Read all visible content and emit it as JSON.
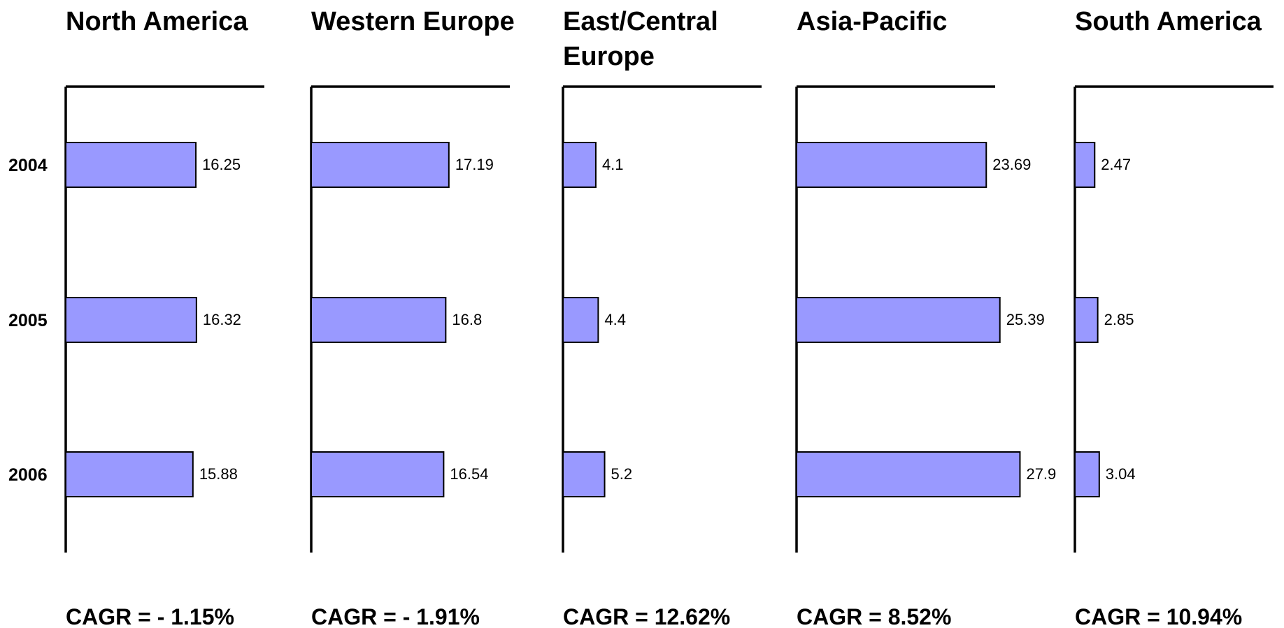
{
  "chart_data": [
    {
      "type": "bar",
      "title": "North America",
      "categories": [
        "2004",
        "2005",
        "2006"
      ],
      "values": [
        16.25,
        16.32,
        15.88
      ],
      "value_labels": [
        "16.25",
        "16.32",
        "15.88"
      ],
      "annotation": "CAGR = - 1.15%",
      "color": "#9999ff"
    },
    {
      "type": "bar",
      "title": "Western Europe",
      "categories": [
        "2004",
        "2005",
        "2006"
      ],
      "values": [
        17.19,
        16.8,
        16.54
      ],
      "value_labels": [
        "17.19",
        "16.8",
        "16.54"
      ],
      "annotation": "CAGR = - 1.91%",
      "color": "#9999ff"
    },
    {
      "type": "bar",
      "title": "East/Central Europe",
      "title_lines": [
        "East/Central",
        "Europe"
      ],
      "categories": [
        "2004",
        "2005",
        "2006"
      ],
      "values": [
        4.1,
        4.4,
        5.2
      ],
      "value_labels": [
        "4.1",
        "4.4",
        "5.2"
      ],
      "annotation": "CAGR = 12.62%",
      "color": "#9999ff"
    },
    {
      "type": "bar",
      "title": "Asia-Pacific",
      "categories": [
        "2004",
        "2005",
        "2006"
      ],
      "values": [
        23.69,
        25.39,
        27.9
      ],
      "value_labels": [
        "23.69",
        "25.39",
        "27.9"
      ],
      "annotation": "CAGR = 8.52%",
      "color": "#9999ff"
    },
    {
      "type": "bar",
      "title": "South America",
      "categories": [
        "2004",
        "2005",
        "2006"
      ],
      "values": [
        2.47,
        2.85,
        3.04
      ],
      "value_labels": [
        "2.47",
        "2.85",
        "3.04"
      ],
      "annotation": "CAGR = 10.94%",
      "color": "#9999ff"
    }
  ]
}
